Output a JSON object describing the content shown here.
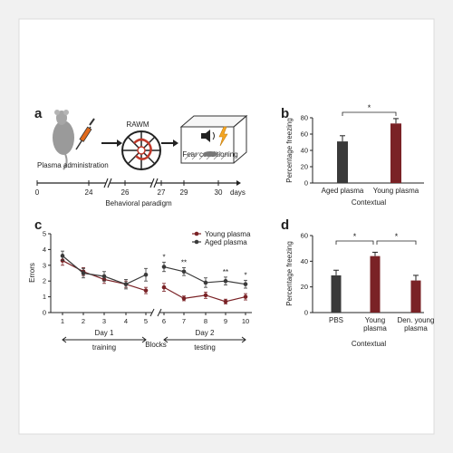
{
  "panel_labels": {
    "a": "a",
    "b": "b",
    "c": "c",
    "d": "d"
  },
  "colors": {
    "aged": "#3a3a3a",
    "young": "#7a2226",
    "dark": "#222222",
    "frame": "#dcdcdc",
    "bg": "#f1f1f1"
  },
  "panel_a": {
    "step_labels": {
      "plasma": "Plasma administration",
      "rawm": "RAWM",
      "fear": "Fear conditioning"
    },
    "timeline_ticks": [
      "0",
      "24",
      "26",
      "27",
      "29",
      "30"
    ],
    "days_label": "days",
    "axis_title": "Behavioral paradigm",
    "icons": [
      "mouse-icon",
      "syringe-icon",
      "radial-arm-water-maze-icon",
      "fear-conditioning-box-icon",
      "speaker-icon",
      "lightning-icon"
    ]
  },
  "chart_data": [
    {
      "panel": "b",
      "type": "bar",
      "categories": [
        "Aged plasma",
        "Young plasma"
      ],
      "values": [
        51,
        73
      ],
      "errors": [
        7,
        6
      ],
      "colors": [
        "#3a3a3a",
        "#7a2226"
      ],
      "ylabel": "Percentage freezing",
      "xlabel": "Contextual",
      "ylim": [
        0,
        80
      ],
      "yticks": [
        "0",
        "20",
        "40",
        "60",
        "80"
      ],
      "significance": [
        {
          "from": 0,
          "to": 1,
          "label": "*"
        }
      ]
    },
    {
      "panel": "c",
      "type": "line",
      "ylabel": "Errors",
      "xlabel": "Blocks",
      "ylim": [
        0,
        5
      ],
      "yticks": [
        "0",
        "1",
        "2",
        "3",
        "4",
        "5"
      ],
      "x": [
        1,
        2,
        3,
        4,
        5,
        6,
        7,
        8,
        9,
        10
      ],
      "xticks": [
        "1",
        "2",
        "3",
        "4",
        "5",
        "6",
        "7",
        "8",
        "9",
        "10"
      ],
      "series": [
        {
          "name": "Young plasma",
          "color": "#7a2226",
          "values": [
            3.3,
            2.6,
            2.1,
            1.8,
            1.4,
            1.6,
            0.9,
            1.1,
            0.7,
            1.0
          ],
          "errors": [
            0.3,
            0.25,
            0.25,
            0.2,
            0.2,
            0.25,
            0.15,
            0.2,
            0.15,
            0.2
          ]
        },
        {
          "name": "Aged plasma",
          "color": "#3a3a3a",
          "values": [
            3.6,
            2.5,
            2.3,
            1.8,
            2.4,
            2.9,
            2.6,
            1.9,
            2.0,
            1.8
          ],
          "errors": [
            0.3,
            0.3,
            0.3,
            0.3,
            0.4,
            0.3,
            0.25,
            0.3,
            0.25,
            0.25
          ]
        }
      ],
      "significance": [
        {
          "x": 6,
          "label": "*"
        },
        {
          "x": 7,
          "label": "**"
        },
        {
          "x": 9,
          "label": "**"
        },
        {
          "x": 10,
          "label": "*"
        }
      ],
      "day_labels": [
        {
          "line1": "Day 1",
          "line2": "training"
        },
        {
          "line1": "Day 2",
          "line2": "testing"
        }
      ]
    },
    {
      "panel": "d",
      "type": "bar",
      "categories": [
        "PBS",
        "Young plasma",
        "Den. young plasma"
      ],
      "category_lines": [
        [
          "PBS"
        ],
        [
          "Young",
          "plasma"
        ],
        [
          "Den. young",
          "plasma"
        ]
      ],
      "values": [
        29,
        44,
        25
      ],
      "errors": [
        4,
        3,
        4
      ],
      "colors": [
        "#3a3a3a",
        "#7a2226",
        "#7a2226"
      ],
      "ylabel": "Percentage freezing",
      "xlabel": "Contextual",
      "ylim": [
        0,
        60
      ],
      "yticks": [
        "0",
        "20",
        "40",
        "60"
      ],
      "significance": [
        {
          "from": 0,
          "to": 1,
          "label": "*"
        },
        {
          "from": 1,
          "to": 2,
          "label": "*"
        }
      ]
    }
  ]
}
